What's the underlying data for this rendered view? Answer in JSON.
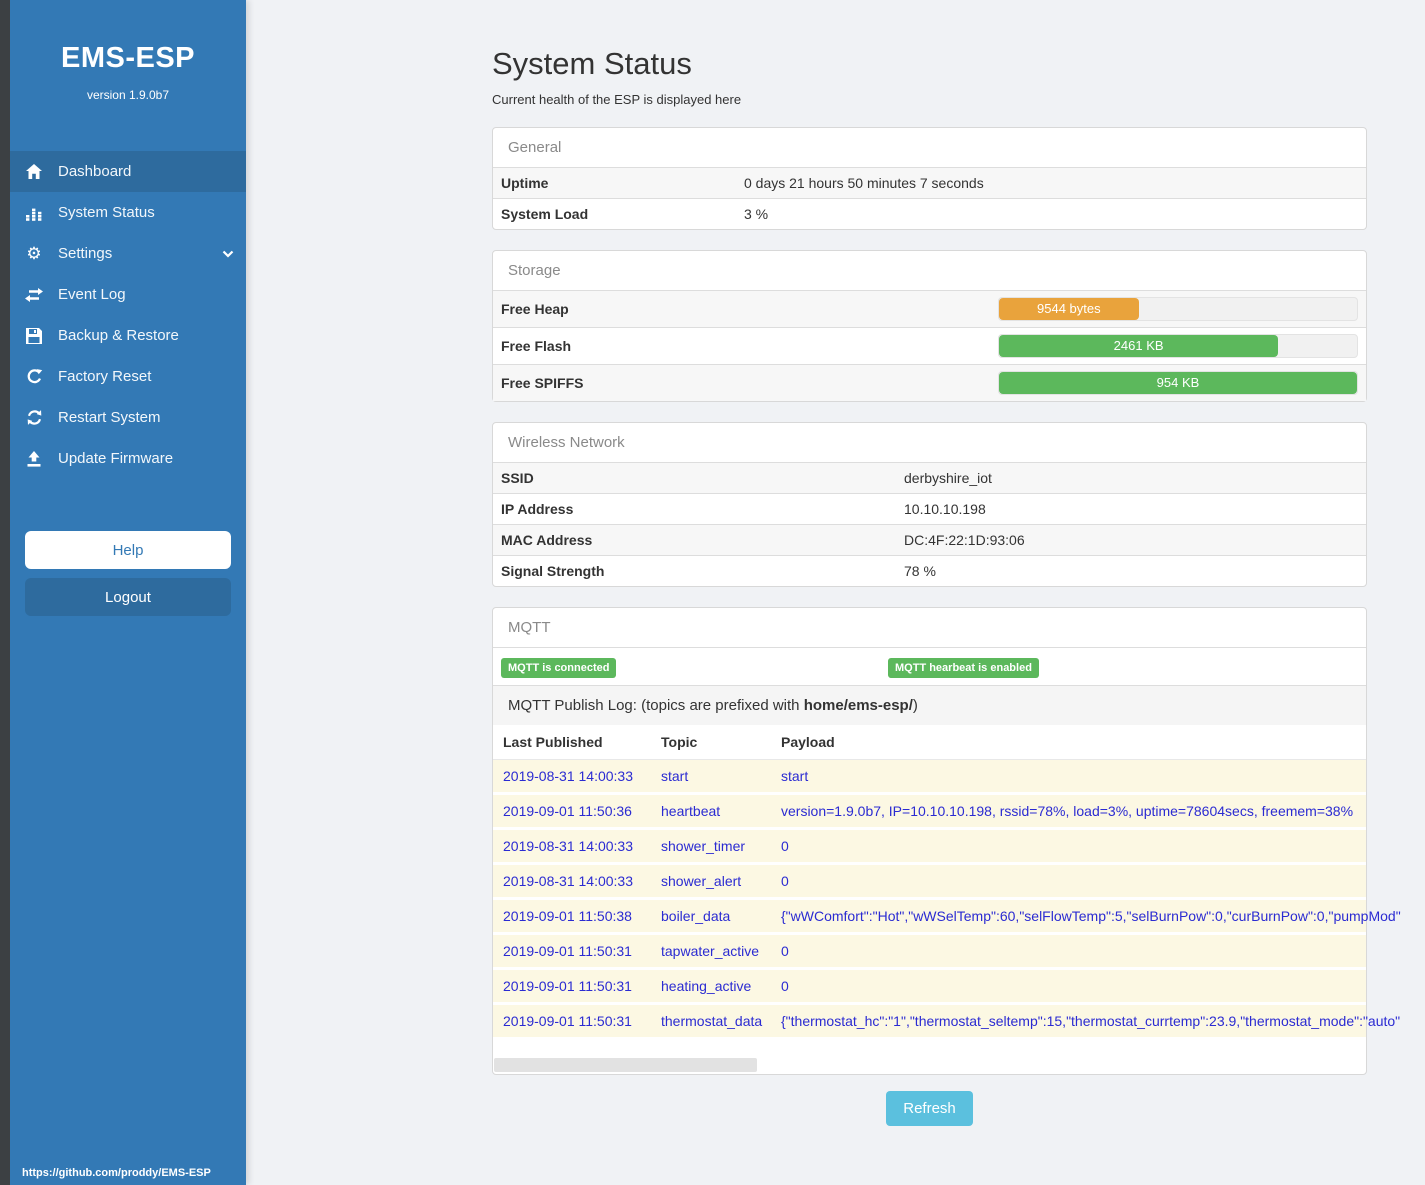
{
  "colors": {
    "sidebar": "#3379b5",
    "sidebar_active": "#2e6b9e",
    "accent_info": "#5bc0de",
    "success_green": "#5cb85c",
    "warning_orange": "#e9a33c",
    "log_row_bg": "#fcf8e3",
    "log_text_blue": "#2b2bd2"
  },
  "sidebar": {
    "title": "EMS-ESP",
    "version": "version 1.9.0b7",
    "nav": [
      {
        "label": "Dashboard",
        "icon": "home-icon",
        "active": true
      },
      {
        "label": "System Status",
        "icon": "bar-chart-icon",
        "active": false
      },
      {
        "label": "Settings",
        "icon": "gear-icon",
        "active": false,
        "expandable": true
      },
      {
        "label": "Event Log",
        "icon": "swap-arrows-icon",
        "active": false
      },
      {
        "label": "Backup & Restore",
        "icon": "save-icon",
        "active": false
      },
      {
        "label": "Factory Reset",
        "icon": "reset-icon",
        "active": false
      },
      {
        "label": "Restart System",
        "icon": "restart-icon",
        "active": false
      },
      {
        "label": "Update Firmware",
        "icon": "upload-icon",
        "active": false
      }
    ],
    "help_label": "Help",
    "logout_label": "Logout",
    "footer_link": "https://github.com/proddy/EMS-ESP"
  },
  "page": {
    "title": "System Status",
    "subtitle": "Current health of the ESP is displayed here",
    "refresh_label": "Refresh"
  },
  "general": {
    "header": "General",
    "rows": [
      {
        "label": "Uptime",
        "value": "0 days 21 hours 50 minutes 7 seconds"
      },
      {
        "label": "System Load",
        "value": "3 %"
      }
    ]
  },
  "storage": {
    "header": "Storage",
    "rows": [
      {
        "label": "Free Heap",
        "bar_label": "9544 bytes",
        "percent": 39,
        "color": "#e9a33c"
      },
      {
        "label": "Free Flash",
        "bar_label": "2461 KB",
        "percent": 78,
        "color": "#5cb85c"
      },
      {
        "label": "Free SPIFFS",
        "bar_label": "954 KB",
        "percent": 100,
        "color": "#5cb85c"
      }
    ]
  },
  "wireless": {
    "header": "Wireless Network",
    "rows": [
      {
        "label": "SSID",
        "value": "derbyshire_iot"
      },
      {
        "label": "IP Address",
        "value": "10.10.10.198"
      },
      {
        "label": "MAC Address",
        "value": "DC:4F:22:1D:93:06"
      },
      {
        "label": "Signal Strength",
        "value": "78 %"
      }
    ]
  },
  "mqtt": {
    "header": "MQTT",
    "badges": [
      "MQTT is connected",
      "MQTT hearbeat is enabled"
    ],
    "publish_log_prefix": "MQTT Publish Log: (topics are prefixed with ",
    "publish_log_bold": "home/ems-esp/",
    "publish_log_suffix": ")",
    "columns": [
      "Last Published",
      "Topic",
      "Payload"
    ],
    "rows": [
      [
        "2019-08-31 14:00:33",
        "start",
        "start"
      ],
      [
        "2019-09-01 11:50:36",
        "heartbeat",
        "version=1.9.0b7, IP=10.10.10.198, rssid=78%, load=3%, uptime=78604secs, freemem=38%"
      ],
      [
        "2019-08-31 14:00:33",
        "shower_timer",
        "0"
      ],
      [
        "2019-08-31 14:00:33",
        "shower_alert",
        "0"
      ],
      [
        "2019-09-01 11:50:38",
        "boiler_data",
        "{\"wWComfort\":\"Hot\",\"wWSelTemp\":60,\"selFlowTemp\":5,\"selBurnPow\":0,\"curBurnPow\":0,\"pumpMod\""
      ],
      [
        "2019-09-01 11:50:31",
        "tapwater_active",
        "0"
      ],
      [
        "2019-09-01 11:50:31",
        "heating_active",
        "0"
      ],
      [
        "2019-09-01 11:50:31",
        "thermostat_data",
        "{\"thermostat_hc\":\"1\",\"thermostat_seltemp\":15,\"thermostat_currtemp\":23.9,\"thermostat_mode\":\"auto\""
      ]
    ]
  }
}
